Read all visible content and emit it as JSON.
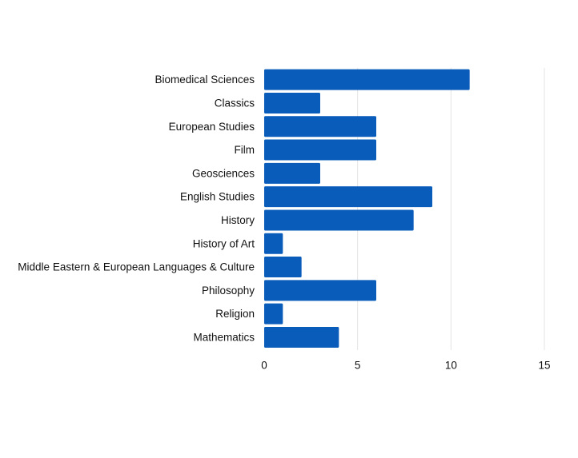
{
  "chart_data": {
    "type": "bar",
    "orientation": "horizontal",
    "title": "",
    "xlabel": "",
    "ylabel": "",
    "categories": [
      "Biomedical Sciences",
      "Classics",
      "European Studies",
      "Film",
      "Geosciences",
      "English Studies",
      "History",
      "History of Art",
      "Middle Eastern & European Languages & Culture",
      "Philosophy",
      "Religion",
      "Mathematics"
    ],
    "values": [
      11,
      3,
      6,
      6,
      3,
      9,
      8,
      1,
      2,
      6,
      1,
      4
    ],
    "xlim": [
      0,
      15
    ],
    "xticks": [
      0,
      5,
      10,
      15
    ],
    "grid": "vertical",
    "legend": "none",
    "colors": {
      "bar": "#0a5cba",
      "gridline": "#e3e3e3",
      "text": "#111111"
    }
  }
}
